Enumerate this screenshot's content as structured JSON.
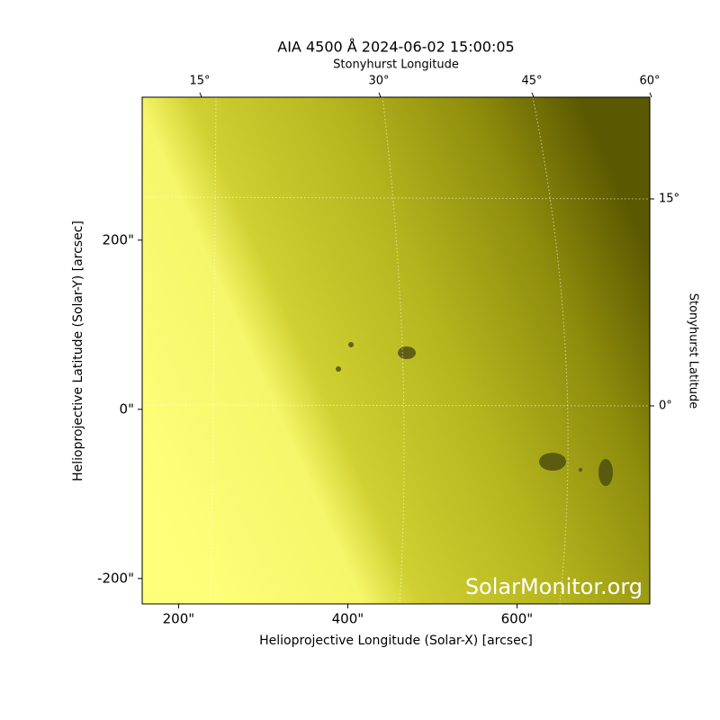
{
  "chart_data": {
    "type": "image",
    "title": "AIA 4500 Å 2024-06-02 15:00:05",
    "xlabel": "Helioprojective Longitude (Solar-X) [arcsec]",
    "ylabel": "Helioprojective Latitude (Solar-Y) [arcsec]",
    "top_axis_label": "Stonyhurst Longitude",
    "right_axis_label": "Stonyhurst Latitude",
    "xlim": [
      157,
      757
    ],
    "ylim": [
      -230,
      369
    ],
    "xticks": [
      {
        "value": 200,
        "label": "200\""
      },
      {
        "value": 400,
        "label": "400\""
      },
      {
        "value": 600,
        "label": "600\""
      }
    ],
    "yticks": [
      {
        "value": -200,
        "label": "-200\""
      },
      {
        "value": 0,
        "label": "0\""
      },
      {
        "value": 200,
        "label": "200\""
      }
    ],
    "top_ticks": [
      "15°",
      "30°",
      "45°",
      "60°"
    ],
    "right_ticks": [
      "0°",
      "15°"
    ],
    "watermark": "SolarMonitor.org"
  }
}
